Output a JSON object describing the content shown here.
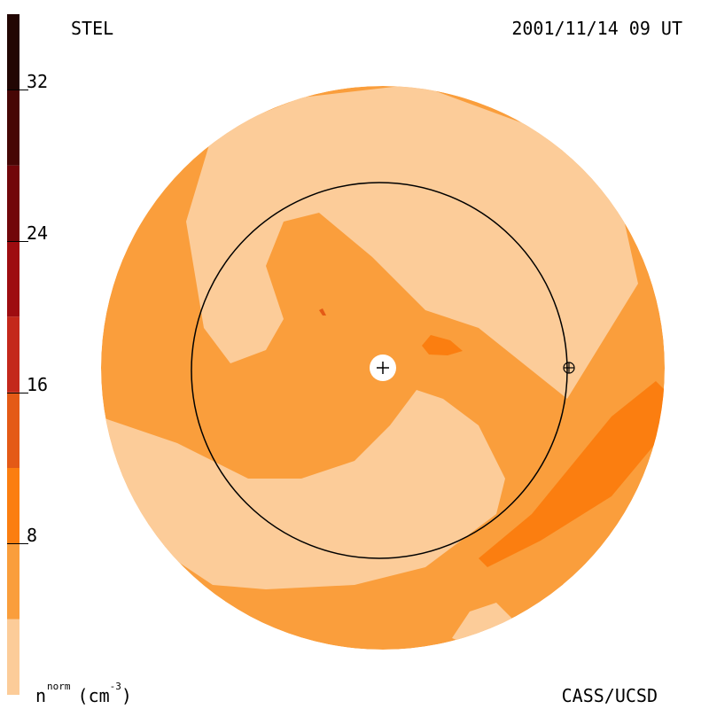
{
  "header": {
    "observatory": "STEL",
    "timestamp": "2001/11/14 09 UT"
  },
  "footer": {
    "quantity": "n",
    "quantity_superscript": "norm",
    "units": "(cm",
    "units_exp": "-3",
    "units_close": ")",
    "credit": "CASS/UCSD"
  },
  "chart_data": {
    "type": "heatmap",
    "title": "",
    "colorbar": {
      "range": [
        0,
        36
      ],
      "tick_labels": [
        "8",
        "16",
        "24",
        "32"
      ],
      "tick_values": [
        8,
        16,
        24,
        32
      ],
      "levels": [
        {
          "from": 0,
          "to": 4,
          "color": "#fccc99"
        },
        {
          "from": 4,
          "to": 8,
          "color": "#fa9e3c"
        },
        {
          "from": 8,
          "to": 12,
          "color": "#fb7e10"
        },
        {
          "from": 12,
          "to": 16,
          "color": "#e45a16"
        },
        {
          "from": 16,
          "to": 20,
          "color": "#c4281b"
        },
        {
          "from": 20,
          "to": 24,
          "color": "#9e0c10"
        },
        {
          "from": 24,
          "to": 28,
          "color": "#72060a"
        },
        {
          "from": 28,
          "to": 32,
          "color": "#470605"
        },
        {
          "from": 32,
          "to": 36,
          "color": "#220603"
        }
      ]
    },
    "markers": [
      {
        "name": "sun",
        "symbol": "+"
      },
      {
        "name": "earth",
        "symbol": "⊕"
      }
    ],
    "reference_circle": "1 AU orbit"
  }
}
